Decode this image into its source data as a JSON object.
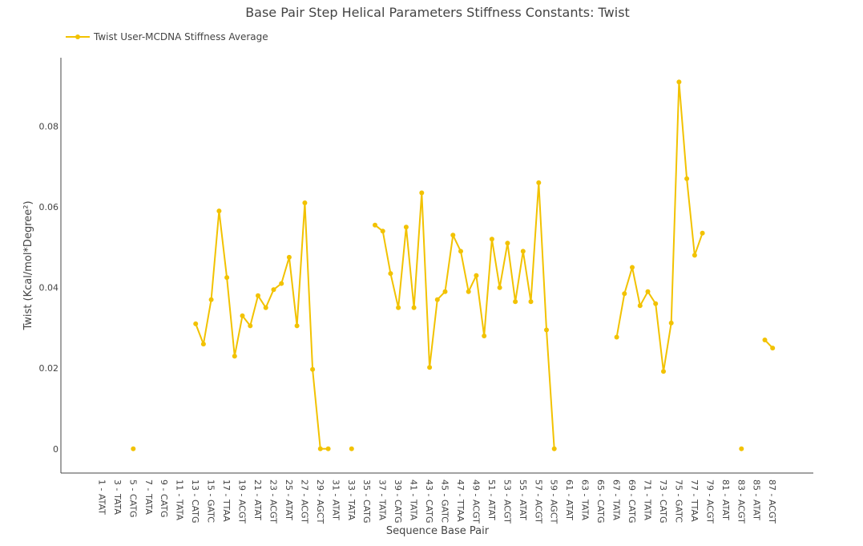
{
  "chart_data": {
    "type": "line",
    "title": "Base Pair Step Helical Parameters Stiffness Constants: Twist",
    "xlabel": "Sequence Base Pair",
    "ylabel": "Twist (Kcal/mol*Degree²)",
    "ylim": [
      -0.006,
      0.097
    ],
    "y_ticks": [
      0,
      0.02,
      0.04,
      0.06,
      0.08
    ],
    "y_tick_labels": [
      "0",
      "0.02",
      "0.04",
      "0.06",
      "0.08"
    ],
    "x_tick_labels": [
      "1 - ATAT",
      "3 - TATA",
      "5 - CATG",
      "7 - TATA",
      "9 - CATG",
      "11 - TATA",
      "13 - CATG",
      "15 - GATC",
      "17 - TTAA",
      "19 - ACGT",
      "21 - ATAT",
      "23 - ACGT",
      "25 - ATAT",
      "27 - ACGT",
      "29 - AGCT",
      "31 - ATAT",
      "33 - TATA",
      "35 - CATG",
      "37 - TATA",
      "39 - CATG",
      "41 - TATA",
      "43 - CATG",
      "45 - GATC",
      "47 - TTAA",
      "49 - ACGT",
      "51 - ATAT",
      "53 - ACGT",
      "55 - ATAT",
      "57 - ACGT",
      "59 - AGCT",
      "61 - ATAT",
      "63 - TATA",
      "65 - CATG",
      "67 - TATA",
      "69 - CATG",
      "71 - TATA",
      "73 - CATG",
      "75 - GATC",
      "77 - TTAA",
      "79 - ACGT",
      "81 - ATAT",
      "83 - ACGT",
      "85 - ATAT",
      "87 - ACGT"
    ],
    "grid": false,
    "legend_position": "top-left",
    "series": [
      {
        "name": "Twist User-MCDNA Stiffness Average",
        "color": "#f2c200",
        "x": [
          1,
          2,
          3,
          4,
          5,
          6,
          7,
          8,
          9,
          10,
          11,
          12,
          13,
          14,
          15,
          16,
          17,
          18,
          19,
          20,
          21,
          22,
          23,
          24,
          25,
          26,
          27,
          28,
          29,
          30,
          31,
          32,
          33,
          34,
          35,
          36,
          37,
          38,
          39,
          40,
          41,
          42,
          43,
          44,
          45,
          46,
          47,
          48,
          49,
          50,
          51,
          52,
          53,
          54,
          55,
          56,
          57,
          58,
          59,
          60,
          61,
          62,
          63,
          64,
          65,
          66,
          67,
          68,
          69,
          70,
          71,
          72,
          73,
          74,
          75,
          76,
          77,
          78,
          79,
          80,
          81,
          82,
          83,
          84,
          85,
          86,
          87,
          88
        ],
        "values": [
          null,
          null,
          null,
          null,
          0,
          null,
          null,
          null,
          null,
          null,
          null,
          null,
          0.031,
          0.026,
          0.037,
          0.059,
          0.0425,
          0.023,
          0.033,
          0.0305,
          0.038,
          0.035,
          0.0395,
          0.041,
          0.0475,
          0.0305,
          0.061,
          0.0197,
          0,
          0,
          null,
          null,
          0,
          null,
          null,
          0.0555,
          0.054,
          0.0435,
          0.035,
          0.055,
          0.035,
          0.0635,
          0.0202,
          0.037,
          0.039,
          0.053,
          0.049,
          0.039,
          0.043,
          0.028,
          0.052,
          0.04,
          0.051,
          0.0365,
          0.049,
          0.0365,
          0.066,
          0.0295,
          0,
          null,
          null,
          null,
          null,
          null,
          null,
          null,
          0.0277,
          0.0385,
          0.045,
          0.0355,
          0.039,
          0.036,
          0.0192,
          0.0312,
          0.091,
          0.067,
          0.048,
          0.0535,
          null,
          null,
          null,
          null,
          0,
          null,
          null,
          0.027,
          0.025,
          null
        ]
      }
    ]
  }
}
